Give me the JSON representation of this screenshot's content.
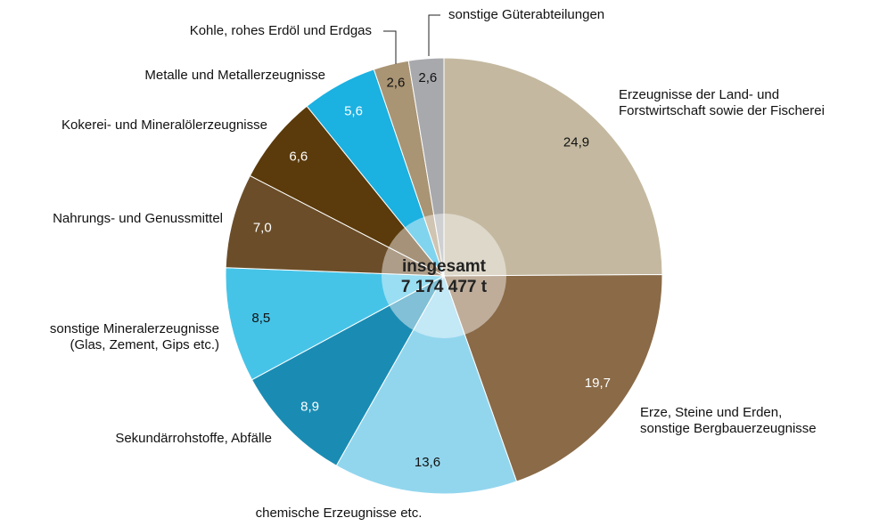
{
  "chart_data": {
    "type": "pie",
    "categories": [
      "Erzeugnisse der Land- und\nForstwirtschaft sowie der Fischerei",
      "Erze, Steine und Erden,\nsonstige Bergbauerzeugnisse",
      "chemische Erzeugnisse etc.",
      "Sekundärrohstoffe, Abfälle",
      "sonstige Mineralerzeugnisse\n(Glas, Zement, Gips etc.)",
      "Nahrungs- und Genussmittel",
      "Kokerei- und Mineralölerzeugnisse",
      "Metalle und Metallerzeugnisse",
      "Kohle, rohes Erdöl und Erdgas",
      "sonstige Güterabteilungen"
    ],
    "values": [
      24.9,
      19.7,
      13.6,
      8.9,
      8.5,
      7.0,
      6.6,
      5.6,
      2.6,
      2.6
    ],
    "value_labels": [
      "24,9",
      "19,7",
      "13,6",
      "8,9",
      "8,5",
      "7,0",
      "6,6",
      "5,6",
      "2,6",
      "2,6"
    ],
    "colors": [
      "#c4b9a0",
      "#8a6a47",
      "#92d6ee",
      "#1a8cb4",
      "#46c4e8",
      "#6b4e29",
      "#5b3a0b",
      "#1bb1e1",
      "#a99474",
      "#a8a9ad"
    ],
    "center_title": "insgesamt",
    "center_value": "7 174 477 t"
  }
}
